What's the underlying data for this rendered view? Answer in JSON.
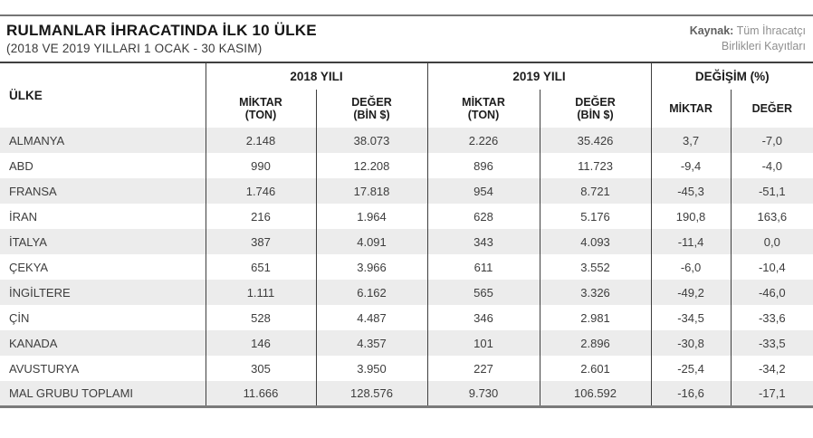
{
  "header": {
    "title": "RULMANLAR İHRACATINDA İLK 10 ÜLKE",
    "subtitle": "(2018 VE 2019 YILLARI 1 OCAK - 30 KASIM)",
    "source_label": "Kaynak:",
    "source_line1": " Tüm İhracatçı",
    "source_line2": "Birlikleri Kayıtları"
  },
  "table": {
    "col_country": "ÜLKE",
    "group_2018": "2018 YILI",
    "group_2019": "2019 YILI",
    "group_change": "DEĞİŞİM (%)",
    "sub_miktar_l1": "MİKTAR",
    "sub_miktar_l2": "(TON)",
    "sub_deger_l1": "DEĞER",
    "sub_deger_l2": "(BİN $)",
    "sub_change_miktar": "MİKTAR",
    "sub_change_deger": "DEĞER",
    "rows": [
      {
        "country": "ALMANYA",
        "m2018": "2.148",
        "d2018": "38.073",
        "m2019": "2.226",
        "d2019": "35.426",
        "cm": "3,7",
        "cd": "-7,0"
      },
      {
        "country": "ABD",
        "m2018": "990",
        "d2018": "12.208",
        "m2019": "896",
        "d2019": "11.723",
        "cm": "-9,4",
        "cd": "-4,0"
      },
      {
        "country": "FRANSA",
        "m2018": "1.746",
        "d2018": "17.818",
        "m2019": "954",
        "d2019": "8.721",
        "cm": "-45,3",
        "cd": "-51,1"
      },
      {
        "country": "İRAN",
        "m2018": "216",
        "d2018": "1.964",
        "m2019": "628",
        "d2019": "5.176",
        "cm": "190,8",
        "cd": "163,6"
      },
      {
        "country": "İTALYA",
        "m2018": "387",
        "d2018": "4.091",
        "m2019": "343",
        "d2019": "4.093",
        "cm": "-11,4",
        "cd": "0,0"
      },
      {
        "country": "ÇEKYA",
        "m2018": "651",
        "d2018": "3.966",
        "m2019": "611",
        "d2019": "3.552",
        "cm": "-6,0",
        "cd": "-10,4"
      },
      {
        "country": "İNGİLTERE",
        "m2018": "1.111",
        "d2018": "6.162",
        "m2019": "565",
        "d2019": "3.326",
        "cm": "-49,2",
        "cd": "-46,0"
      },
      {
        "country": "ÇİN",
        "m2018": "528",
        "d2018": "4.487",
        "m2019": "346",
        "d2019": "2.981",
        "cm": "-34,5",
        "cd": "-33,6"
      },
      {
        "country": "KANADA",
        "m2018": "146",
        "d2018": "4.357",
        "m2019": "101",
        "d2019": "2.896",
        "cm": "-30,8",
        "cd": "-33,5"
      },
      {
        "country": "AVUSTURYA",
        "m2018": "305",
        "d2018": "3.950",
        "m2019": "227",
        "d2019": "2.601",
        "cm": "-25,4",
        "cd": "-34,2"
      },
      {
        "country": "MAL GRUBU TOPLAMI",
        "m2018": "11.666",
        "d2018": "128.576",
        "m2019": "9.730",
        "d2019": "106.592",
        "cm": "-16,6",
        "cd": "-17,1"
      }
    ]
  },
  "colors": {
    "stripe": "#ececec",
    "grid_line": "#3f3f3f",
    "top_rule": "#757575",
    "bottom_border": "#7a7a7a",
    "text": "#3d3d3d",
    "source_text": "#8f8f8f"
  },
  "chart_data": {
    "type": "table",
    "title": "RULMANLAR İHRACATINDA İLK 10 ÜLKE",
    "subtitle": "(2018 VE 2019 YILLARI 1 OCAK - 30 KASIM)",
    "source": "Kaynak: Tüm İhracatçı Birlikleri Kayıtları",
    "columns": [
      "ÜLKE",
      "2018 YILI MİKTAR (TON)",
      "2018 YILI DEĞER (BİN $)",
      "2019 YILI MİKTAR (TON)",
      "2019 YILI DEĞER (BİN $)",
      "DEĞİŞİM (%) MİKTAR",
      "DEĞİŞİM (%) DEĞER"
    ],
    "rows": [
      [
        "ALMANYA",
        2148,
        38073,
        2226,
        35426,
        3.7,
        -7.0
      ],
      [
        "ABD",
        990,
        12208,
        896,
        11723,
        -9.4,
        -4.0
      ],
      [
        "FRANSA",
        1746,
        17818,
        954,
        8721,
        -45.3,
        -51.1
      ],
      [
        "İRAN",
        216,
        1964,
        628,
        5176,
        190.8,
        163.6
      ],
      [
        "İTALYA",
        387,
        4091,
        343,
        4093,
        -11.4,
        0.0
      ],
      [
        "ÇEKYA",
        651,
        3966,
        611,
        3552,
        -6.0,
        -10.4
      ],
      [
        "İNGİLTERE",
        1111,
        6162,
        565,
        3326,
        -49.2,
        -46.0
      ],
      [
        "ÇİN",
        528,
        4487,
        346,
        2981,
        -34.5,
        -33.6
      ],
      [
        "KANADA",
        146,
        4357,
        101,
        2896,
        -30.8,
        -33.5
      ],
      [
        "AVUSTURYA",
        305,
        3950,
        227,
        2601,
        -25.4,
        -34.2
      ],
      [
        "MAL GRUBU TOPLAMI",
        11666,
        128576,
        9730,
        106592,
        -16.6,
        -17.1
      ]
    ]
  }
}
